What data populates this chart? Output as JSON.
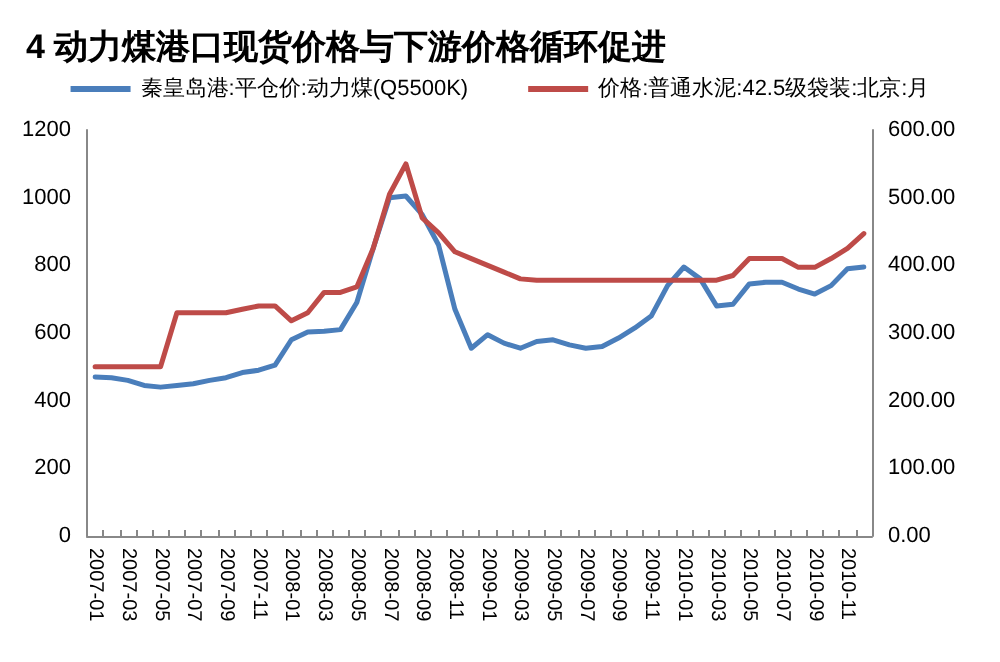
{
  "chart_data": {
    "type": "line",
    "title": "4 动力煤港口现货价格与下游价格循环促进",
    "categories": [
      "2007-01",
      null,
      "2007-03",
      null,
      "2007-05",
      null,
      "2007-07",
      null,
      "2007-09",
      null,
      "2007-11",
      null,
      "2008-01",
      null,
      "2008-03",
      null,
      "2008-05",
      null,
      "2008-07",
      null,
      "2008-09",
      null,
      "2008-11",
      null,
      "2009-01",
      null,
      "2009-03",
      null,
      "2009-05",
      null,
      "2009-07",
      null,
      "2009-09",
      null,
      "2009-11",
      null,
      "2010-01",
      null,
      "2010-03",
      null,
      "2010-05",
      null,
      "2010-07",
      null,
      "2010-09",
      null,
      "2010-11",
      null
    ],
    "series": [
      {
        "name": "秦皇岛港:平仓价:动力煤(Q5500K)",
        "color": "#4a7ebb",
        "values": [
          470,
          468,
          460,
          445,
          440,
          445,
          450,
          460,
          468,
          483,
          490,
          505,
          580,
          603,
          605,
          610,
          690,
          850,
          1000,
          1005,
          950,
          860,
          670,
          555,
          595,
          570,
          555,
          575,
          580,
          565,
          555,
          560,
          585,
          615,
          650,
          740,
          795,
          760,
          680,
          685,
          745,
          750,
          750,
          730,
          715,
          740,
          790,
          795
        ]
      },
      {
        "name": "价格:普通水泥:42.5级袋装:北京:月",
        "color": "#be4b48",
        "axis": "y2",
        "values": [
          250,
          250,
          250,
          250,
          250,
          330,
          330,
          330,
          330,
          335,
          340,
          340,
          318,
          330,
          360,
          360,
          368,
          425,
          505,
          550,
          470,
          448,
          420,
          410,
          400,
          390,
          380,
          378,
          378,
          378,
          378,
          378,
          378,
          378,
          378,
          378,
          378,
          378,
          378,
          385,
          410,
          410,
          410,
          397,
          397,
          410,
          425,
          447
        ]
      }
    ],
    "ylim": [
      0,
      1200
    ],
    "yticks": [
      0,
      200,
      400,
      600,
      800,
      1000,
      1200
    ],
    "y2lim": [
      0,
      600
    ],
    "y2ticks": [
      {
        "value": 0,
        "label": "0.00"
      },
      {
        "value": 100,
        "label": "100.00"
      },
      {
        "value": 200,
        "label": "200.00"
      },
      {
        "value": 300,
        "label": "300.00"
      },
      {
        "value": 400,
        "label": "400.00"
      },
      {
        "value": 500,
        "label": "500.00"
      },
      {
        "value": 600,
        "label": "600.00"
      }
    ],
    "grid": false,
    "legend": "top",
    "marker": "none",
    "line_style": "solid"
  }
}
